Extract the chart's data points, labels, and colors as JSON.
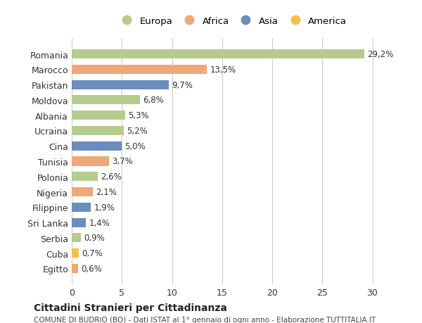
{
  "categories": [
    "Romania",
    "Marocco",
    "Pakistan",
    "Moldova",
    "Albania",
    "Ucraina",
    "Cina",
    "Tunisia",
    "Polonia",
    "Nigeria",
    "Filippine",
    "Sri Lanka",
    "Serbia",
    "Cuba",
    "Egitto"
  ],
  "values": [
    29.2,
    13.5,
    9.7,
    6.8,
    5.3,
    5.2,
    5.0,
    3.7,
    2.6,
    2.1,
    1.9,
    1.4,
    0.9,
    0.7,
    0.6
  ],
  "labels": [
    "29,2%",
    "13,5%",
    "9,7%",
    "6,8%",
    "5,3%",
    "5,2%",
    "5,0%",
    "3,7%",
    "2,6%",
    "2,1%",
    "1,9%",
    "1,4%",
    "0,9%",
    "0,7%",
    "0,6%"
  ],
  "continents": [
    "Europa",
    "Africa",
    "Asia",
    "Europa",
    "Europa",
    "Europa",
    "Asia",
    "Africa",
    "Europa",
    "Africa",
    "Asia",
    "Asia",
    "Europa",
    "America",
    "Africa"
  ],
  "continent_colors": {
    "Europa": "#b5cc8e",
    "Africa": "#f0a878",
    "Asia": "#6b8cbf",
    "America": "#f0c050"
  },
  "legend_order": [
    "Europa",
    "Africa",
    "Asia",
    "America"
  ],
  "title": "Cittadini Stranieri per Cittadinanza",
  "subtitle": "COMUNE DI BUDRIO (BO) - Dati ISTAT al 1° gennaio di ogni anno - Elaborazione TUTTITALIA.IT",
  "xlim": [
    0,
    32
  ],
  "xticks": [
    0,
    5,
    10,
    15,
    20,
    25,
    30
  ],
  "background_color": "#ffffff",
  "grid_color": "#cccccc"
}
